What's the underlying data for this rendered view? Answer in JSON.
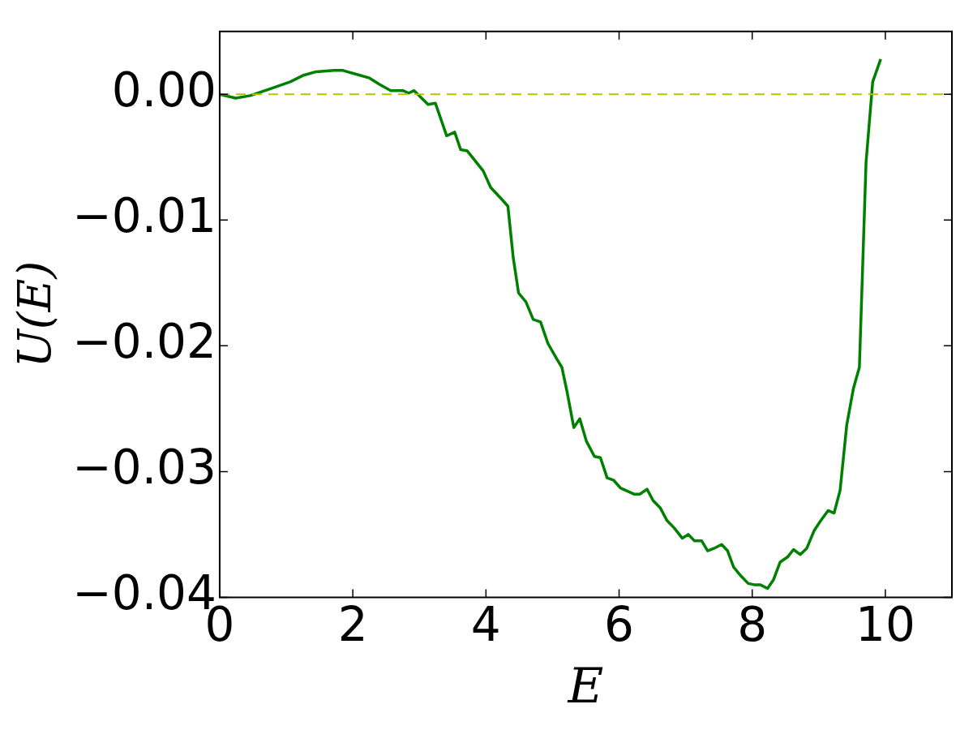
{
  "chart_data": {
    "type": "line",
    "xlabel": "E",
    "ylabel": "U(E)",
    "xlim": [
      0,
      11
    ],
    "xticks": [
      0,
      2,
      4,
      6,
      8,
      10
    ],
    "ylim": [
      -0.04,
      0.005
    ],
    "yticks": [
      {
        "value": -0.04,
        "label": "−0.04"
      },
      {
        "value": -0.03,
        "label": "−0.03"
      },
      {
        "value": -0.02,
        "label": "−0.02"
      },
      {
        "value": -0.01,
        "label": "−0.01"
      },
      {
        "value": 0,
        "label": "0.00"
      }
    ],
    "grid": false,
    "legend": false,
    "marker": "none",
    "line_style": "solid",
    "ref_lines": [
      {
        "axis": "y",
        "value": 0,
        "label": null,
        "color": "#bfbf00",
        "line_style": "dashed"
      }
    ],
    "series": [
      {
        "color": "#008000",
        "x": [
          0,
          0.24,
          0.46,
          0.79,
          1.06,
          1.25,
          1.45,
          1.72,
          1.85,
          2.05,
          2.25,
          2.4,
          2.57,
          2.75,
          2.84,
          2.92,
          3.13,
          3.24,
          3.41,
          3.53,
          3.62,
          3.72,
          3.96,
          4.07,
          4.23,
          4.33,
          4.41,
          4.49,
          4.6,
          4.71,
          4.82,
          4.93,
          5.07,
          5.14,
          5.22,
          5.32,
          5.41,
          5.51,
          5.63,
          5.72,
          5.82,
          5.92,
          6.02,
          6.23,
          6.31,
          6.42,
          6.51,
          6.62,
          6.72,
          6.83,
          6.95,
          7.04,
          7.13,
          7.24,
          7.33,
          7.43,
          7.54,
          7.63,
          7.72,
          7.83,
          7.94,
          8.03,
          8.12,
          8.23,
          8.32,
          8.42,
          8.53,
          8.62,
          8.72,
          8.82,
          8.93,
          9.03,
          9.14,
          9.23,
          9.32,
          9.42,
          9.52,
          9.61,
          9.71,
          9.81,
          9.93
        ],
        "values": [
          0,
          -0.0003,
          -0.0001,
          0.0005,
          0.001,
          0.0015,
          0.0018,
          0.0019,
          0.0019,
          0.0016,
          0.0013,
          0.0008,
          0.0003,
          0.0003,
          0.0001,
          0.0003,
          -0.0008,
          -0.0007,
          -0.0033,
          -0.003,
          -0.0044,
          -0.0045,
          -0.0061,
          -0.0074,
          -0.0083,
          -0.0089,
          -0.013,
          -0.0158,
          -0.0165,
          -0.0179,
          -0.0181,
          -0.0198,
          -0.0211,
          -0.0217,
          -0.0237,
          -0.0265,
          -0.0258,
          -0.0276,
          -0.0288,
          -0.0289,
          -0.0305,
          -0.0307,
          -0.0313,
          -0.0318,
          -0.0318,
          -0.0314,
          -0.0323,
          -0.0329,
          -0.0339,
          -0.0345,
          -0.0353,
          -0.035,
          -0.0355,
          -0.0355,
          -0.0363,
          -0.0361,
          -0.0358,
          -0.0363,
          -0.0376,
          -0.0383,
          -0.0389,
          -0.039,
          -0.039,
          -0.0393,
          -0.0386,
          -0.0372,
          -0.0368,
          -0.0362,
          -0.0366,
          -0.0361,
          -0.0347,
          -0.0339,
          -0.0331,
          -0.0333,
          -0.0315,
          -0.0263,
          -0.0234,
          -0.0217,
          -0.0054,
          0.001,
          0.0028
        ]
      }
    ]
  }
}
